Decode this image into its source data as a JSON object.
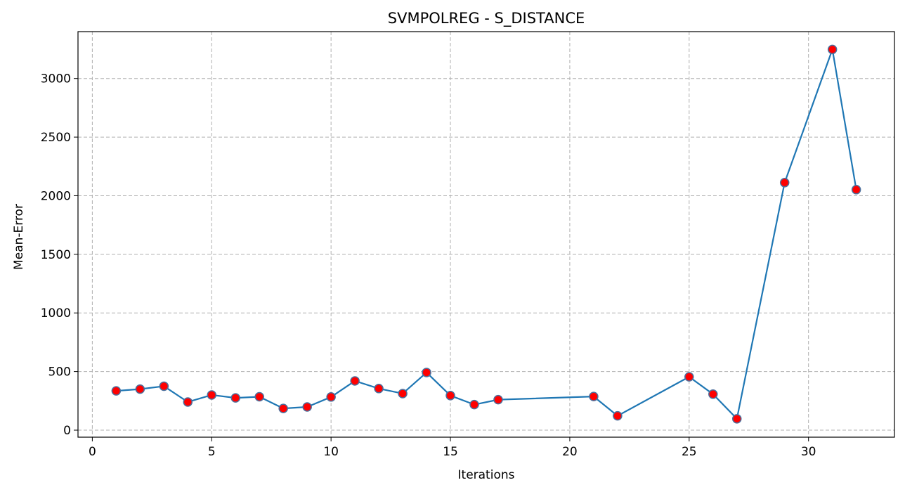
{
  "chart_data": {
    "type": "line",
    "title": "SVMPOLREG - S_DISTANCE",
    "xlabel": "Iterations",
    "ylabel": "Mean-Error",
    "xlim": [
      -0.6,
      33.6
    ],
    "ylim": [
      -60,
      3400
    ],
    "xticks": [
      0,
      5,
      10,
      15,
      20,
      25,
      30
    ],
    "yticks": [
      0,
      500,
      1000,
      1500,
      2000,
      2500,
      3000
    ],
    "grid": true,
    "colors": {
      "line": "#1f77b4",
      "marker_face": "#ff0000",
      "marker_edge": "#4c6f9c"
    },
    "series": [
      {
        "x": [
          1,
          2,
          3,
          4,
          5,
          6,
          7,
          8,
          9,
          10,
          11,
          12,
          13,
          14,
          15,
          16,
          17,
          21,
          22,
          25,
          26,
          27,
          29,
          31,
          32
        ],
        "values": [
          335,
          350,
          375,
          240,
          300,
          275,
          285,
          185,
          198,
          283,
          420,
          355,
          312,
          492,
          295,
          218,
          260,
          287,
          122,
          455,
          307,
          97,
          2112,
          3248,
          2052
        ]
      }
    ]
  }
}
